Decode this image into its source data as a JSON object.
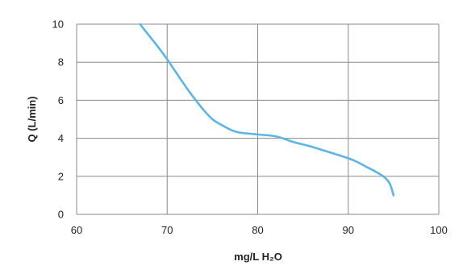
{
  "chart_data": {
    "type": "line",
    "title": "",
    "xlabel": "mg/L H₂O",
    "ylabel": "Q (L/min)",
    "xlim": [
      60,
      100
    ],
    "ylim": [
      0,
      10
    ],
    "x_ticks": [
      "60",
      "70",
      "80",
      "90",
      "100"
    ],
    "y_ticks": [
      "0",
      "2",
      "4",
      "6",
      "8",
      "10"
    ],
    "grid": true,
    "legend": "none",
    "series": [
      {
        "color": "#5bb5e6",
        "x": [
          67,
          68,
          69,
          70,
          71,
          72,
          73,
          74,
          75,
          76,
          77,
          78,
          80,
          82,
          84,
          86,
          88,
          90,
          91,
          92,
          93,
          94,
          94.6,
          95
        ],
        "y": [
          10,
          9.4,
          8.8,
          8.15,
          7.45,
          6.75,
          6.1,
          5.5,
          5.0,
          4.7,
          4.45,
          4.3,
          4.2,
          4.1,
          3.8,
          3.55,
          3.25,
          2.95,
          2.75,
          2.5,
          2.25,
          1.95,
          1.6,
          1.0
        ]
      }
    ]
  }
}
